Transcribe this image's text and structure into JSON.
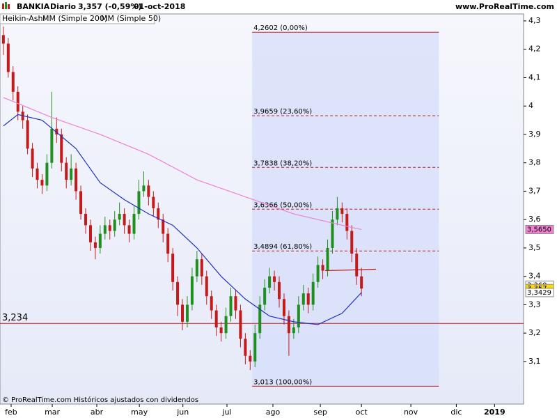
{
  "header": {
    "symbol": "BANKIA",
    "period": "Diario",
    "quote": "3,357 (-0,59%)",
    "date": "01-oct-2018",
    "site": "www.ProRealTime.com"
  },
  "legend": [
    "Heikin-Ashi",
    "MM (Simple 200)",
    "MM (Simple 50)"
  ],
  "footer": "© ProRealTime.com Históricos ajustados con dividendos",
  "chart_data": {
    "type": "candlestick",
    "up_color": "#1f8f1f",
    "down_color": "#c41a1a",
    "candles": [
      [
        4.25,
        4.28,
        4.18,
        4.22
      ],
      [
        4.22,
        4.24,
        4.1,
        4.12
      ],
      [
        4.12,
        4.14,
        4.02,
        4.05
      ],
      [
        4.05,
        4.07,
        3.95,
        3.98
      ],
      [
        3.98,
        4.0,
        3.92,
        3.95
      ],
      [
        3.95,
        3.97,
        3.83,
        3.85
      ],
      [
        3.85,
        3.87,
        3.75,
        3.78
      ],
      [
        3.78,
        3.8,
        3.71,
        3.74
      ],
      [
        3.74,
        3.76,
        3.69,
        3.72
      ],
      [
        3.72,
        3.83,
        3.7,
        3.8
      ],
      [
        3.8,
        4.05,
        3.78,
        3.92
      ],
      [
        3.92,
        3.96,
        3.87,
        3.9
      ],
      [
        3.9,
        3.92,
        3.77,
        3.8
      ],
      [
        3.8,
        3.82,
        3.71,
        3.74
      ],
      [
        3.74,
        3.83,
        3.72,
        3.78
      ],
      [
        3.78,
        3.8,
        3.67,
        3.7
      ],
      [
        3.7,
        3.72,
        3.6,
        3.62
      ],
      [
        3.62,
        3.64,
        3.55,
        3.58
      ],
      [
        3.58,
        3.6,
        3.49,
        3.52
      ],
      [
        3.52,
        3.54,
        3.46,
        3.5
      ],
      [
        3.5,
        3.58,
        3.48,
        3.55
      ],
      [
        3.55,
        3.61,
        3.53,
        3.58
      ],
      [
        3.58,
        3.6,
        3.53,
        3.56
      ],
      [
        3.56,
        3.63,
        3.54,
        3.6
      ],
      [
        3.6,
        3.66,
        3.58,
        3.62
      ],
      [
        3.62,
        3.64,
        3.55,
        3.58
      ],
      [
        3.58,
        3.6,
        3.52,
        3.55
      ],
      [
        3.55,
        3.65,
        3.53,
        3.62
      ],
      [
        3.62,
        3.74,
        3.6,
        3.7
      ],
      [
        3.7,
        3.77,
        3.68,
        3.72
      ],
      [
        3.72,
        3.74,
        3.65,
        3.68
      ],
      [
        3.68,
        3.7,
        3.61,
        3.64
      ],
      [
        3.64,
        3.66,
        3.57,
        3.6
      ],
      [
        3.6,
        3.62,
        3.52,
        3.55
      ],
      [
        3.55,
        3.57,
        3.45,
        3.48
      ],
      [
        3.48,
        3.5,
        3.35,
        3.38
      ],
      [
        3.38,
        3.4,
        3.26,
        3.3
      ],
      [
        3.3,
        3.32,
        3.21,
        3.24
      ],
      [
        3.24,
        3.33,
        3.22,
        3.3
      ],
      [
        3.3,
        3.43,
        3.28,
        3.4
      ],
      [
        3.4,
        3.49,
        3.38,
        3.46
      ],
      [
        3.46,
        3.48,
        3.37,
        3.4
      ],
      [
        3.4,
        3.42,
        3.3,
        3.33
      ],
      [
        3.33,
        3.35,
        3.25,
        3.28
      ],
      [
        3.28,
        3.3,
        3.19,
        3.22
      ],
      [
        3.22,
        3.24,
        3.17,
        3.2
      ],
      [
        3.2,
        3.29,
        3.18,
        3.26
      ],
      [
        3.26,
        3.36,
        3.24,
        3.33
      ],
      [
        3.33,
        3.35,
        3.25,
        3.28
      ],
      [
        3.28,
        3.3,
        3.15,
        3.18
      ],
      [
        3.18,
        3.2,
        3.09,
        3.12
      ],
      [
        3.12,
        3.14,
        3.07,
        3.1
      ],
      [
        3.1,
        3.23,
        3.08,
        3.2
      ],
      [
        3.2,
        3.33,
        3.18,
        3.3
      ],
      [
        3.3,
        3.39,
        3.28,
        3.36
      ],
      [
        3.36,
        3.43,
        3.34,
        3.4
      ],
      [
        3.4,
        3.42,
        3.35,
        3.38
      ],
      [
        3.38,
        3.4,
        3.29,
        3.32
      ],
      [
        3.32,
        3.34,
        3.23,
        3.26
      ],
      [
        3.26,
        3.28,
        3.12,
        3.2
      ],
      [
        3.2,
        3.25,
        3.18,
        3.22
      ],
      [
        3.22,
        3.33,
        3.2,
        3.3
      ],
      [
        3.3,
        3.37,
        3.28,
        3.34
      ],
      [
        3.34,
        3.36,
        3.27,
        3.3
      ],
      [
        3.3,
        3.41,
        3.28,
        3.38
      ],
      [
        3.38,
        3.47,
        3.36,
        3.44
      ],
      [
        3.44,
        3.46,
        3.39,
        3.42
      ],
      [
        3.42,
        3.53,
        3.4,
        3.5
      ],
      [
        3.5,
        3.63,
        3.48,
        3.6
      ],
      [
        3.6,
        3.68,
        3.58,
        3.64
      ],
      [
        3.64,
        3.66,
        3.59,
        3.62
      ],
      [
        3.62,
        3.64,
        3.53,
        3.56
      ],
      [
        3.56,
        3.58,
        3.45,
        3.48
      ],
      [
        3.48,
        3.5,
        3.37,
        3.4
      ],
      [
        3.4,
        3.43,
        3.33,
        3.357
      ]
    ],
    "series": [
      {
        "name": "MM (Simple 200)",
        "color": "#f080d0",
        "x": [
          0,
          10,
          20,
          30,
          40,
          50,
          60,
          70,
          74
        ],
        "values": [
          4.03,
          3.96,
          3.9,
          3.83,
          3.74,
          3.68,
          3.62,
          3.58,
          3.565
        ]
      },
      {
        "name": "MM (Simple 50)",
        "color": "#2030c0",
        "x": [
          0,
          3,
          8,
          15,
          20,
          25,
          30,
          35,
          40,
          45,
          50,
          55,
          60,
          65,
          70,
          74
        ],
        "values": [
          3.93,
          3.97,
          3.95,
          3.85,
          3.73,
          3.67,
          3.62,
          3.58,
          3.5,
          3.4,
          3.32,
          3.26,
          3.24,
          3.23,
          3.27,
          3.343
        ]
      }
    ],
    "fib": {
      "start": 51.4,
      "end": 90,
      "levels": [
        {
          "value": 4.2602,
          "label": "4,2602 (0,00%)"
        },
        {
          "value": 3.9659,
          "label": "3,9659 (23,60%)"
        },
        {
          "value": 3.7838,
          "label": "3,7838 (38,20%)"
        },
        {
          "value": 3.6366,
          "label": "3,6366 (50,00%)"
        },
        {
          "value": 3.4894,
          "label": "3,4894 (61,80%)"
        },
        {
          "value": 3.013,
          "label": "3,013 (100,00%)"
        }
      ]
    },
    "hline": {
      "value": 3.234,
      "label": "3,234"
    },
    "trendline": {
      "x": [
        66.5,
        77
      ],
      "values": [
        3.42,
        3.425
      ]
    },
    "price_tags": [
      {
        "value": 3.565,
        "label": "3,5650",
        "color": "#f080d0"
      },
      {
        "value": 3.369,
        "label": "3,369",
        "color": "#ffffff"
      },
      {
        "value": 3.357,
        "label": "3,357",
        "color": "#ffd800"
      },
      {
        "value": 3.3429,
        "label": "3,3429",
        "color": "#ffffff"
      }
    ],
    "xlim": [
      -0.7,
      107.5
    ],
    "xticks": [
      {
        "value": 1.6,
        "label": "feb"
      },
      {
        "value": 10.1,
        "label": "mar"
      },
      {
        "value": 19.3,
        "label": "abr"
      },
      {
        "value": 28.1,
        "label": "may"
      },
      {
        "value": 37.1,
        "label": "jun"
      },
      {
        "value": 46.2,
        "label": "jul"
      },
      {
        "value": 55.7,
        "label": "ago"
      },
      {
        "value": 65.5,
        "label": "sep"
      },
      {
        "value": 74,
        "label": "oct"
      },
      {
        "value": 84.2,
        "label": "nov"
      },
      {
        "value": 93.6,
        "label": "dic"
      },
      {
        "value": 101.5,
        "label": "2019"
      }
    ],
    "ylim": [
      2.95,
      4.3245
    ],
    "yticks": [
      {
        "value": 4.3,
        "label": "4,3"
      },
      {
        "value": 4.2,
        "label": "4,2"
      },
      {
        "value": 4.1,
        "label": "4,1"
      },
      4,
      {
        "value": 3.9,
        "label": "3,9"
      },
      {
        "value": 3.8,
        "label": "3,8"
      },
      {
        "value": 3.7,
        "label": "3,7"
      },
      {
        "value": 3.6,
        "label": "3,6"
      },
      {
        "value": 3.5,
        "label": "3,5"
      },
      {
        "value": 3.4,
        "label": "3,4"
      },
      {
        "value": 3.3,
        "label": "3,3"
      },
      {
        "value": 3.2,
        "label": "3,2"
      },
      {
        "value": 3.1,
        "label": "3,1"
      }
    ]
  }
}
